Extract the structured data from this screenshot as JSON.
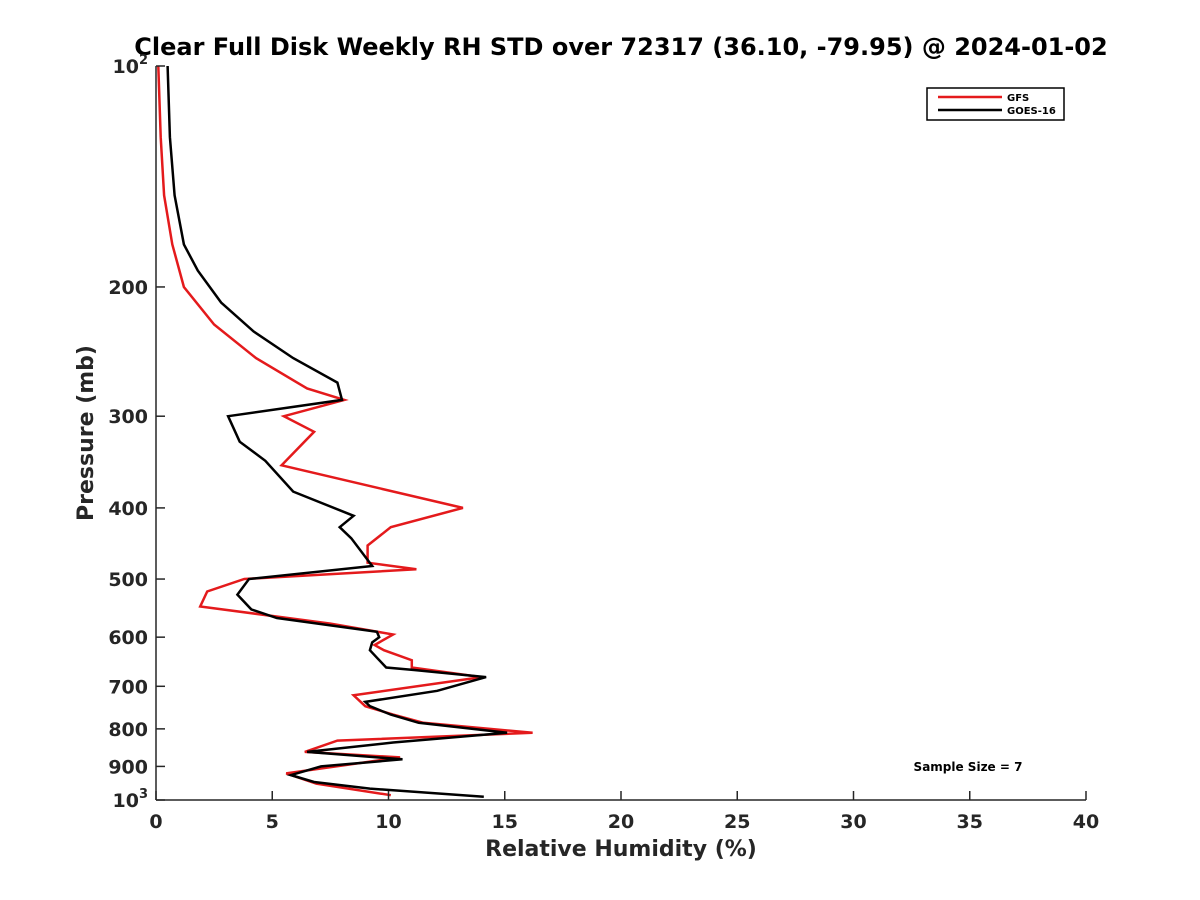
{
  "chart_data": {
    "type": "line",
    "title": "Clear Full Disk Weekly RH STD over 72317 (36.10, -79.95) @ 2024-01-02",
    "xlabel": "Relative Humidity (%)",
    "ylabel": "Pressure (mb)",
    "xlim": [
      0,
      40
    ],
    "ylim": [
      100,
      1000
    ],
    "y_scale": "log",
    "y_reversed": true,
    "grid": false,
    "legend_position": "top-right",
    "annotation": "Sample Size = 7",
    "x_ticks": [
      0,
      5,
      10,
      15,
      20,
      25,
      30,
      35,
      40
    ],
    "y_ticks": [
      {
        "value": 100,
        "label": "10",
        "exp": "2"
      },
      {
        "value": 200,
        "label": "200"
      },
      {
        "value": 300,
        "label": "300"
      },
      {
        "value": 400,
        "label": "400"
      },
      {
        "value": 500,
        "label": "500"
      },
      {
        "value": 600,
        "label": "600"
      },
      {
        "value": 700,
        "label": "700"
      },
      {
        "value": 800,
        "label": "800"
      },
      {
        "value": 900,
        "label": "900"
      },
      {
        "value": 1000,
        "label": "10",
        "exp": "3"
      }
    ],
    "series": [
      {
        "name": "GFS",
        "color": "#e41a1c",
        "points": [
          [
            0.1,
            100
          ],
          [
            0.2,
            125
          ],
          [
            0.35,
            150
          ],
          [
            0.7,
            175
          ],
          [
            1.2,
            200
          ],
          [
            2.5,
            225
          ],
          [
            4.3,
            250
          ],
          [
            6.5,
            275
          ],
          [
            8.1,
            285
          ],
          [
            5.5,
            300
          ],
          [
            6.8,
            315
          ],
          [
            5.4,
            350
          ],
          [
            13.2,
            400
          ],
          [
            10.1,
            425
          ],
          [
            9.1,
            450
          ],
          [
            9.1,
            475
          ],
          [
            11.2,
            485
          ],
          [
            3.8,
            500
          ],
          [
            2.2,
            520
          ],
          [
            1.9,
            545
          ],
          [
            7.5,
            575
          ],
          [
            10.2,
            595
          ],
          [
            9.4,
            615
          ],
          [
            9.8,
            625
          ],
          [
            11.0,
            645
          ],
          [
            11.0,
            660
          ],
          [
            14.0,
            680
          ],
          [
            8.5,
            720
          ],
          [
            9.0,
            745
          ],
          [
            10.2,
            765
          ],
          [
            11.5,
            785
          ],
          [
            16.2,
            810
          ],
          [
            7.8,
            830
          ],
          [
            6.4,
            860
          ],
          [
            10.5,
            875
          ],
          [
            5.6,
            920
          ],
          [
            6.9,
            950
          ],
          [
            10.1,
            985
          ]
        ]
      },
      {
        "name": "GOES-16",
        "color": "#000000",
        "points": [
          [
            0.5,
            100
          ],
          [
            0.6,
            125
          ],
          [
            0.8,
            150
          ],
          [
            1.2,
            175
          ],
          [
            1.8,
            190
          ],
          [
            2.8,
            210
          ],
          [
            4.2,
            230
          ],
          [
            5.9,
            250
          ],
          [
            7.8,
            270
          ],
          [
            8.0,
            285
          ],
          [
            3.1,
            300
          ],
          [
            3.6,
            325
          ],
          [
            4.7,
            345
          ],
          [
            5.9,
            380
          ],
          [
            8.5,
            410
          ],
          [
            7.9,
            425
          ],
          [
            8.4,
            440
          ],
          [
            9.3,
            480
          ],
          [
            4.0,
            500
          ],
          [
            3.5,
            525
          ],
          [
            4.1,
            550
          ],
          [
            5.2,
            565
          ],
          [
            9.5,
            590
          ],
          [
            9.6,
            600
          ],
          [
            9.3,
            610
          ],
          [
            9.2,
            625
          ],
          [
            9.5,
            640
          ],
          [
            9.9,
            660
          ],
          [
            11.1,
            665
          ],
          [
            14.2,
            680
          ],
          [
            12.1,
            710
          ],
          [
            9.0,
            735
          ],
          [
            9.2,
            745
          ],
          [
            10.1,
            765
          ],
          [
            11.3,
            785
          ],
          [
            15.1,
            810
          ],
          [
            10.2,
            835
          ],
          [
            6.5,
            860
          ],
          [
            10.6,
            880
          ],
          [
            7.1,
            900
          ],
          [
            5.8,
            925
          ],
          [
            6.8,
            945
          ],
          [
            9.2,
            965
          ],
          [
            14.1,
            990
          ]
        ]
      }
    ]
  }
}
